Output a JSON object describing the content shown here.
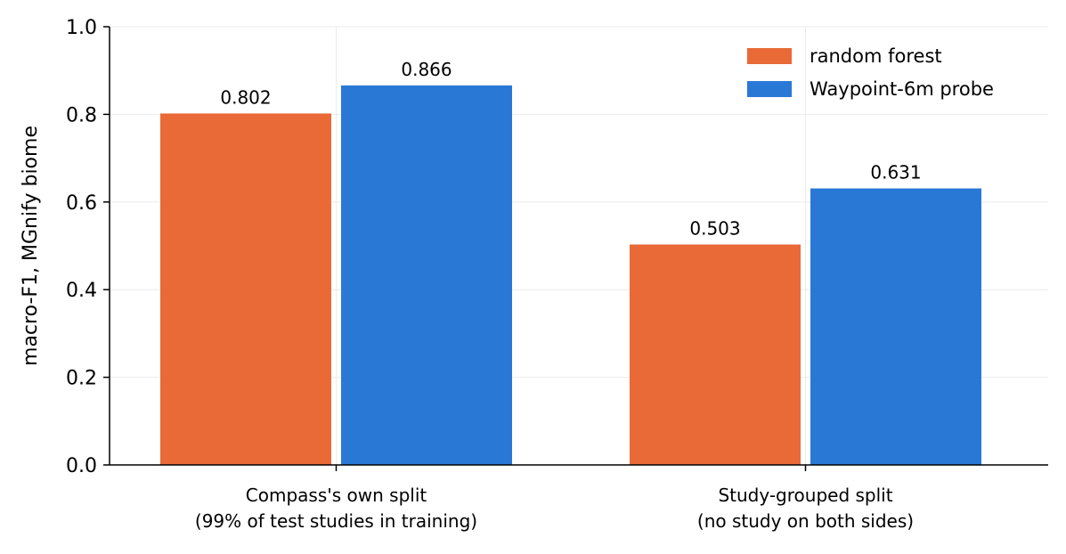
{
  "chart_data": {
    "type": "bar",
    "categories": [
      [
        "Compass's own split",
        "(99% of test studies in training)"
      ],
      [
        "Study-grouped split",
        "(no study on both sides)"
      ]
    ],
    "series": [
      {
        "name": "random forest",
        "color": "#E96A36",
        "values": [
          0.802,
          0.503
        ],
        "labels": [
          "0.802",
          "0.503"
        ]
      },
      {
        "name": "Waypoint-6m probe",
        "color": "#2A78D6",
        "values": [
          0.866,
          0.631
        ],
        "labels": [
          "0.866",
          "0.631"
        ]
      }
    ],
    "ylabel": "macro-F1, MGnify biome",
    "ylim": [
      0,
      1.0
    ],
    "yticks": [
      0.0,
      0.2,
      0.4,
      0.6,
      0.8,
      1.0
    ],
    "ytick_labels": [
      "0.0",
      "0.2",
      "0.4",
      "0.6",
      "0.8",
      "1.0"
    ],
    "grid": true,
    "legend": "top-right"
  }
}
